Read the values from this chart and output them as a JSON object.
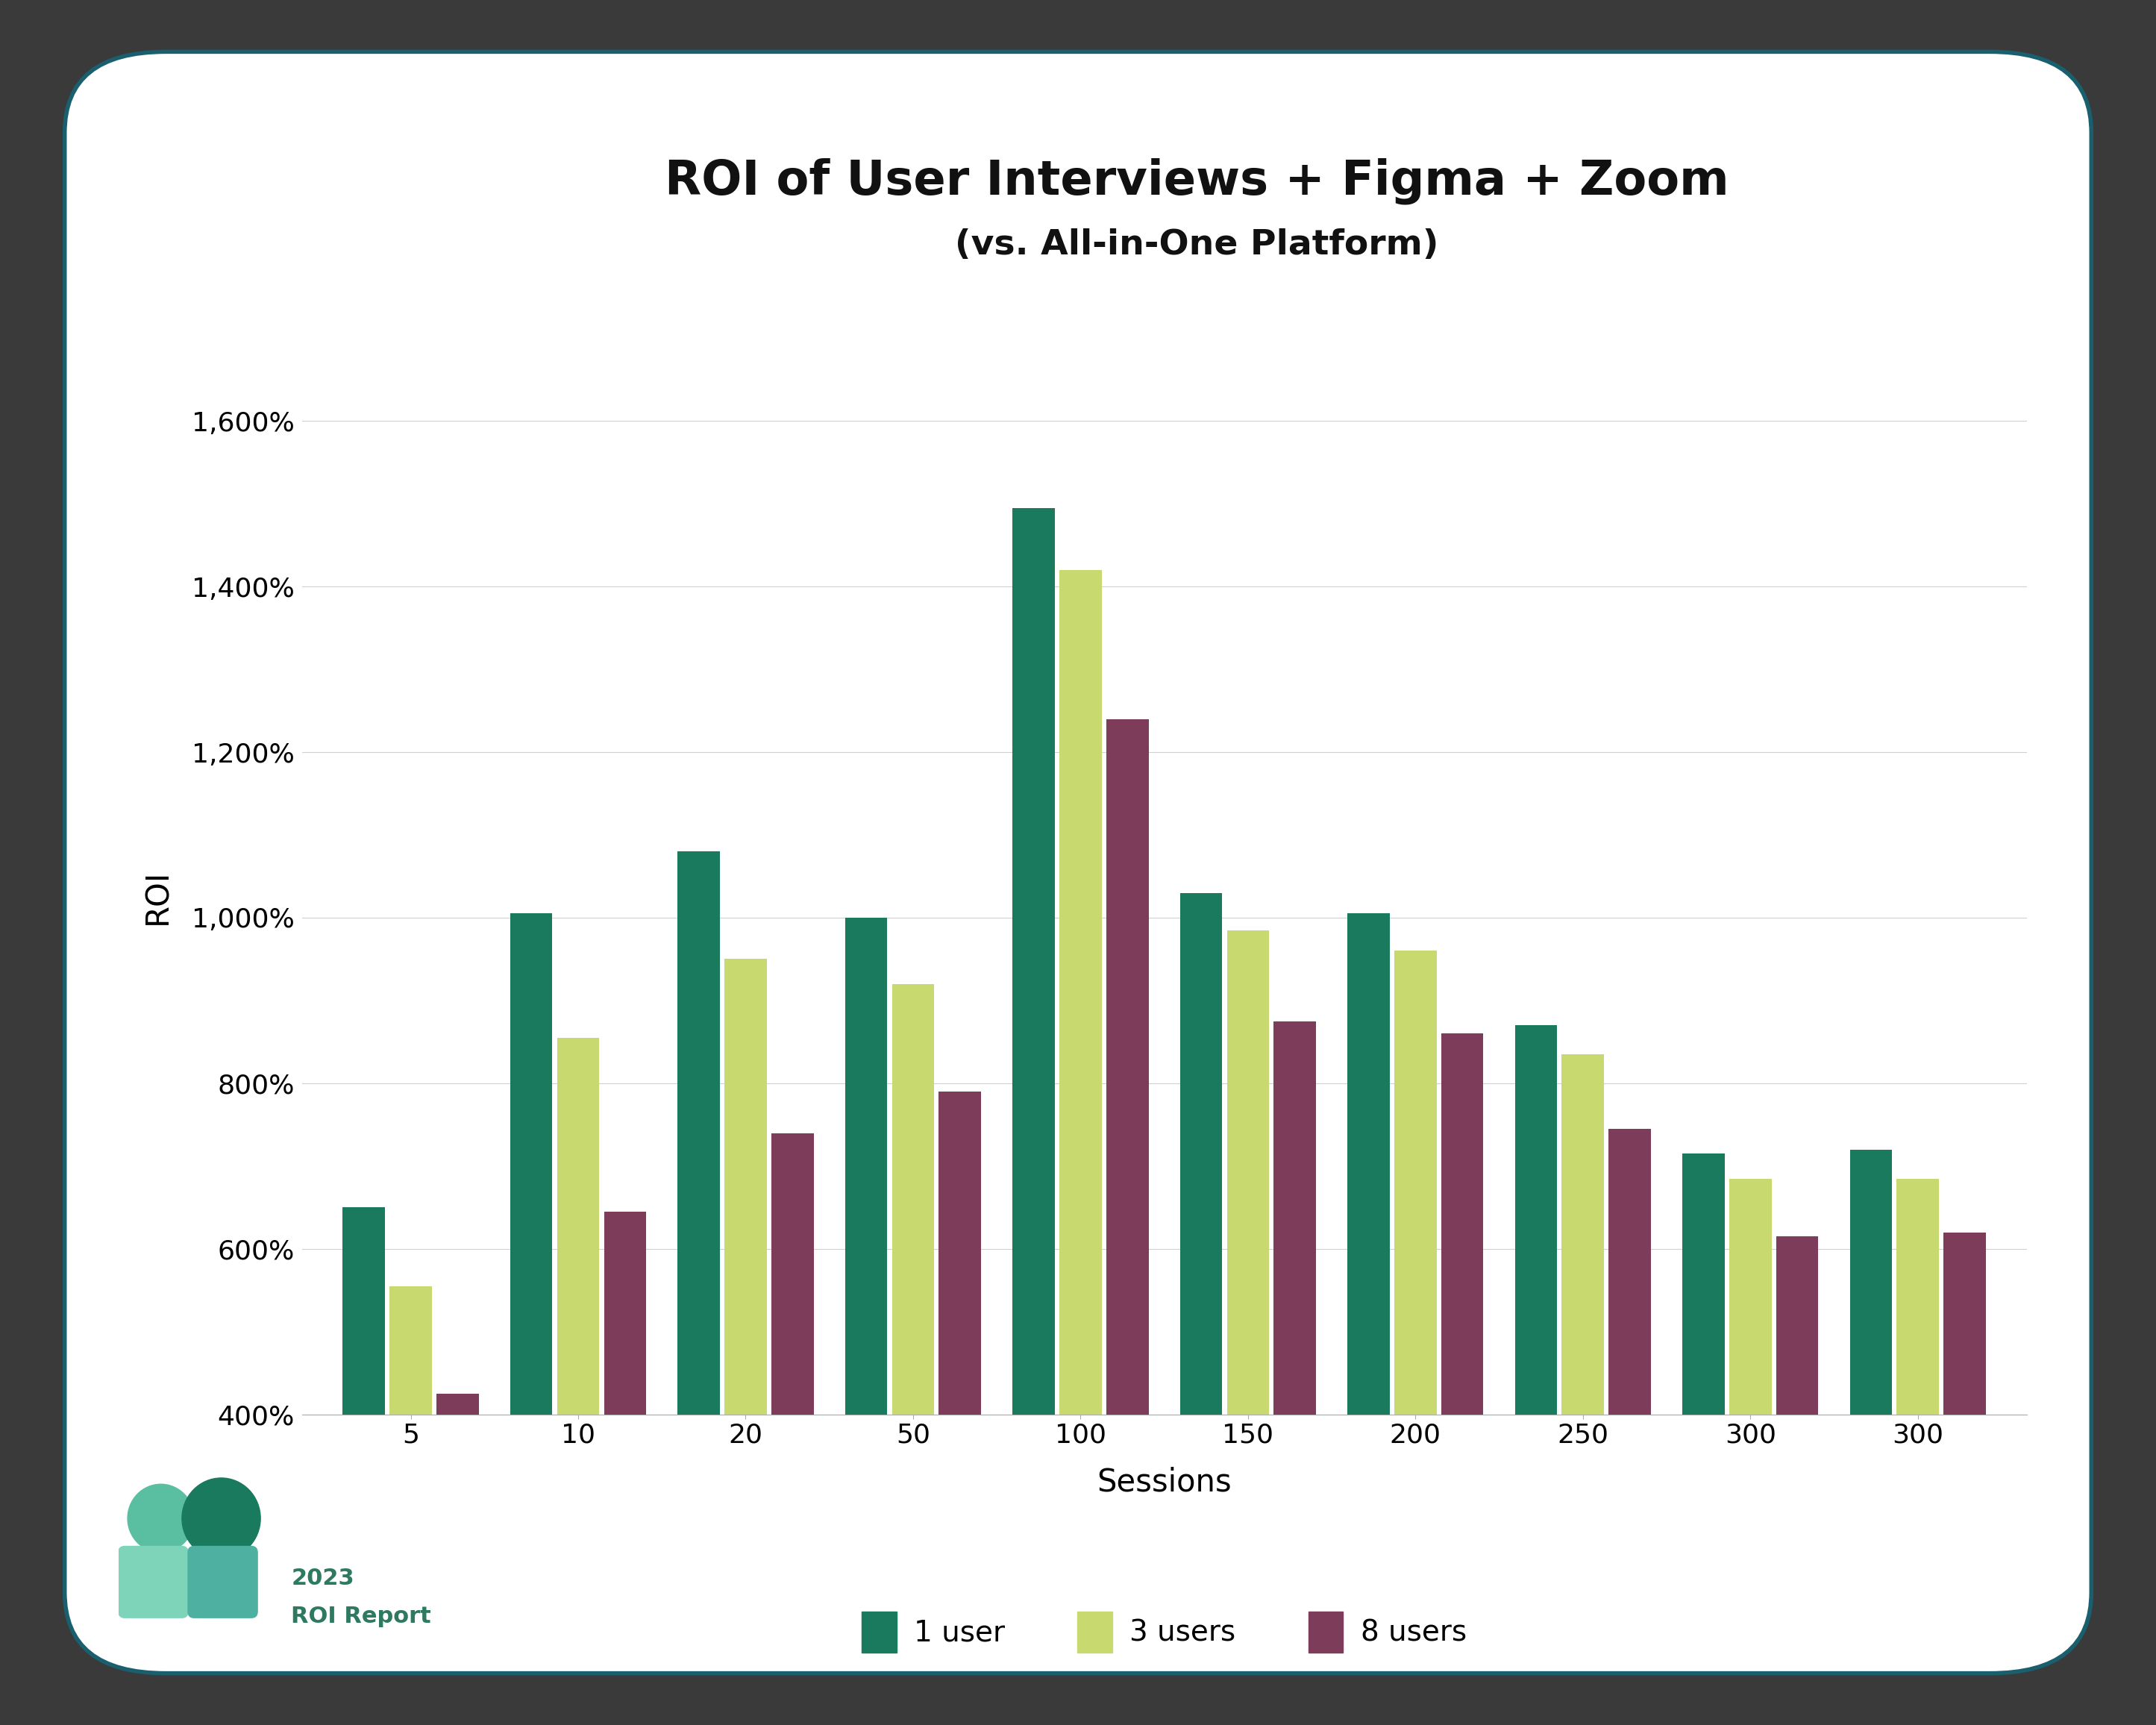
{
  "title_line1": "ROI of User Interviews + Figma + Zoom",
  "title_line2": "(vs. All-in-One Platform)",
  "xlabel": "Sessions",
  "ylabel": "ROI",
  "background_color": "#ffffff",
  "outer_background": "#3a3a3a",
  "categories": [
    "5",
    "10",
    "20",
    "50",
    "100",
    "150",
    "200",
    "250",
    "300",
    "300"
  ],
  "series": {
    "1 user": {
      "color": "#1a7a5e",
      "values": [
        650,
        1005,
        1080,
        1000,
        1495,
        1030,
        1005,
        870,
        715,
        720
      ]
    },
    "3 users": {
      "color": "#c8d96f",
      "values": [
        555,
        855,
        950,
        920,
        1420,
        985,
        960,
        835,
        685,
        685
      ]
    },
    "8 users": {
      "color": "#7d3c5a",
      "values": [
        425,
        645,
        740,
        790,
        1240,
        875,
        860,
        745,
        615,
        620
      ]
    }
  },
  "ylim_min": 400,
  "ylim_max": 1650,
  "yticks": [
    400,
    600,
    800,
    1000,
    1200,
    1400,
    1600
  ],
  "ytick_labels": [
    "400%",
    "600%",
    "800%",
    "1,000%",
    "1,200%",
    "1,400%",
    "1,600%"
  ],
  "title_fontsize": 46,
  "subtitle_fontsize": 34,
  "axis_label_fontsize": 30,
  "tick_fontsize": 26,
  "legend_fontsize": 28,
  "bar_width": 0.28,
  "grid_color": "#d0d0d0",
  "border_color": "#1a5f6e",
  "watermark_text_color": "#2d7a60"
}
